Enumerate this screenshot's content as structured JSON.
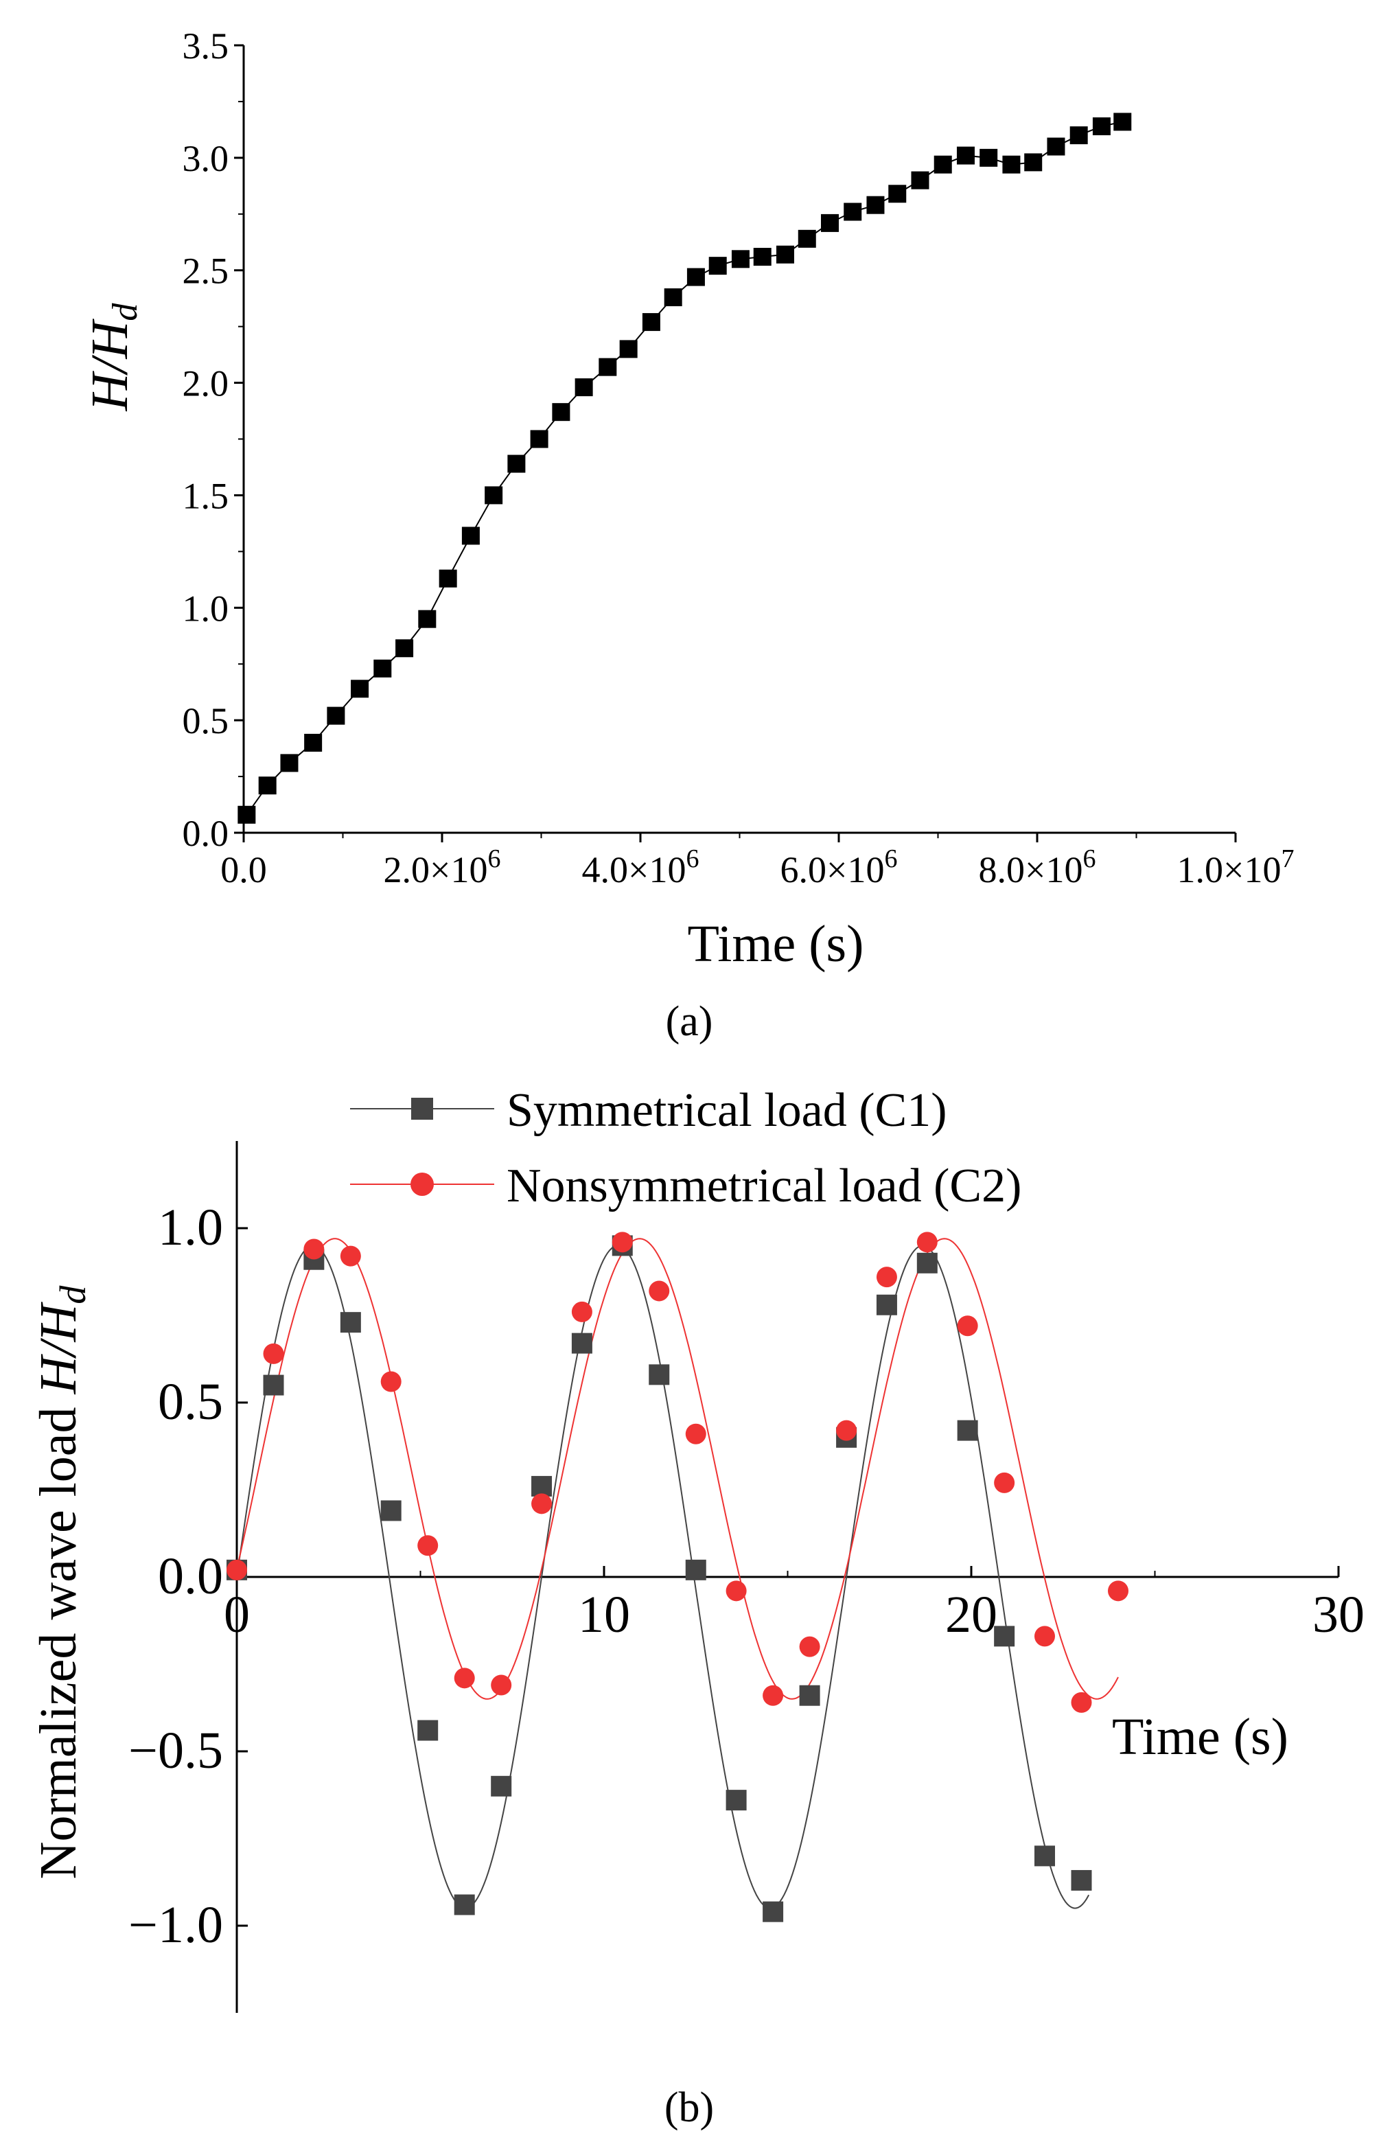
{
  "chart_data": [
    {
      "panel": "a",
      "caption": "(a)",
      "type": "line",
      "xlabel": "Time (s)",
      "ylabel": "H/H_d",
      "ylabel_parts": {
        "main": "H/H",
        "sub": "d"
      },
      "xlim": [
        0,
        10000000
      ],
      "ylim": [
        0,
        3.5
      ],
      "xticks": [
        0,
        2000000,
        4000000,
        6000000,
        8000000,
        10000000
      ],
      "xtick_labels": [
        {
          "mantissa": "0.0",
          "exp": ""
        },
        {
          "mantissa": "2.0×10",
          "exp": "6"
        },
        {
          "mantissa": "4.0×10",
          "exp": "6"
        },
        {
          "mantissa": "6.0×10",
          "exp": "6"
        },
        {
          "mantissa": "8.0×10",
          "exp": "6"
        },
        {
          "mantissa": "1.0×10",
          "exp": "7"
        }
      ],
      "yticks": [
        0,
        0.5,
        1.0,
        1.5,
        2.0,
        2.5,
        3.0,
        3.5
      ],
      "ytick_labels": [
        "0.0",
        "0.5",
        "1.0",
        "1.5",
        "2.0",
        "2.5",
        "3.0",
        "3.5"
      ],
      "marker": "square",
      "color": "#000000",
      "x": [
        30000,
        240000,
        460000,
        700000,
        930000,
        1170000,
        1400000,
        1620000,
        1850000,
        2060000,
        2290000,
        2520000,
        2750000,
        2980000,
        3200000,
        3430000,
        3670000,
        3880000,
        4110000,
        4330000,
        4560000,
        4780000,
        5010000,
        5230000,
        5460000,
        5680000,
        5910000,
        6140000,
        6370000,
        6590000,
        6820000,
        7050000,
        7280000,
        7510000,
        7740000,
        7960000,
        8190000,
        8420000,
        8650000,
        8860000
      ],
      "y": [
        0.08,
        0.21,
        0.31,
        0.4,
        0.52,
        0.64,
        0.73,
        0.82,
        0.95,
        1.13,
        1.32,
        1.5,
        1.64,
        1.75,
        1.87,
        1.98,
        2.07,
        2.15,
        2.27,
        2.38,
        2.47,
        2.52,
        2.55,
        2.56,
        2.57,
        2.64,
        2.71,
        2.76,
        2.79,
        2.84,
        2.9,
        2.97,
        3.01,
        3.0,
        2.97,
        2.98,
        3.05,
        3.1,
        3.14,
        3.16
      ]
    },
    {
      "panel": "b",
      "caption": "(b)",
      "type": "line",
      "xlabel": "Time (s)",
      "ylabel": "Normalized wave load  H/H_d",
      "ylabel_parts": {
        "main": "Normalized wave load  ",
        "italic": "H/H",
        "sub": "d"
      },
      "xlim": [
        0,
        30
      ],
      "ylim": [
        -1.25,
        1.25
      ],
      "xticks": [
        0,
        10,
        20,
        30
      ],
      "xtick_labels": [
        "0",
        "10",
        "20",
        "30"
      ],
      "yticks": [
        -1.0,
        -0.5,
        0.0,
        0.5,
        1.0
      ],
      "ytick_labels": [
        "−1.0",
        "−0.5",
        "0.0",
        "0.5",
        "1.0"
      ],
      "series": [
        {
          "name": "Symmetrical load (C1)",
          "color": "#444444",
          "marker": "square",
          "x": [
            0,
            1.0,
            2.1,
            3.1,
            4.2,
            5.2,
            6.2,
            7.2,
            8.3,
            9.4,
            10.5,
            11.5,
            12.5,
            13.6,
            14.6,
            15.6,
            16.6,
            17.7,
            18.8,
            19.9,
            20.9,
            22.0,
            23.0
          ],
          "y": [
            0.02,
            0.55,
            0.91,
            0.73,
            0.19,
            -0.44,
            -0.94,
            -0.6,
            0.26,
            0.67,
            0.95,
            0.58,
            0.02,
            -0.64,
            -0.96,
            -0.34,
            0.4,
            0.78,
            0.9,
            0.42,
            -0.17,
            -0.8,
            -0.87
          ],
          "fit_period": 8.3,
          "fit_phase": 0.0,
          "fit_amp": 0.95
        },
        {
          "name": "Nonsymmetrical load (C2)",
          "color": "#ee3333",
          "marker": "circle",
          "x": [
            0,
            1.0,
            2.1,
            3.1,
            4.2,
            5.2,
            6.2,
            7.2,
            8.3,
            9.4,
            10.5,
            11.5,
            12.5,
            13.6,
            14.6,
            15.6,
            16.6,
            17.7,
            18.8,
            19.9,
            20.9,
            22.0,
            23.0,
            24.0
          ],
          "y": [
            0.02,
            0.64,
            0.94,
            0.92,
            0.56,
            0.09,
            -0.29,
            -0.31,
            0.21,
            0.76,
            0.96,
            0.82,
            0.41,
            -0.04,
            -0.34,
            -0.2,
            0.42,
            0.86,
            0.96,
            0.72,
            0.27,
            -0.17,
            -0.36,
            -0.04
          ],
          "fit_period": 8.3,
          "fit_center": 0.31,
          "fit_amp": 0.66
        }
      ]
    }
  ]
}
